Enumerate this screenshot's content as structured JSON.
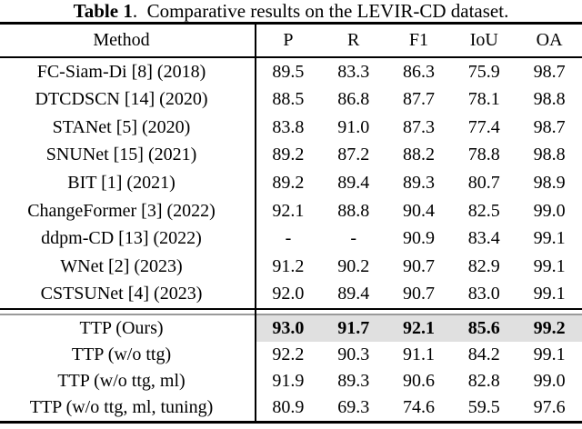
{
  "caption": {
    "tag": "Table 1",
    "rest": ".  Comparative results on the LEVIR-CD dataset."
  },
  "columns": {
    "method": "Method",
    "metrics": [
      "P",
      "R",
      "F1",
      "IoU",
      "OA"
    ]
  },
  "rows": [
    {
      "method": "FC-Siam-Di [8] (2018)",
      "values": [
        "89.5",
        "83.3",
        "86.3",
        "75.9",
        "98.7"
      ]
    },
    {
      "method": "DTCDSCN [14] (2020)",
      "values": [
        "88.5",
        "86.8",
        "87.7",
        "78.1",
        "98.8"
      ]
    },
    {
      "method": "STANet [5] (2020)",
      "values": [
        "83.8",
        "91.0",
        "87.3",
        "77.4",
        "98.7"
      ]
    },
    {
      "method": "SNUNet [15] (2021)",
      "values": [
        "89.2",
        "87.2",
        "88.2",
        "78.8",
        "98.8"
      ]
    },
    {
      "method": "BIT [1] (2021)",
      "values": [
        "89.2",
        "89.4",
        "89.3",
        "80.7",
        "98.9"
      ]
    },
    {
      "method": "ChangeFormer [3] (2022)",
      "values": [
        "92.1",
        "88.8",
        "90.4",
        "82.5",
        "99.0"
      ]
    },
    {
      "method": "ddpm-CD [13] (2022)",
      "values": [
        "-",
        "-",
        "90.9",
        "83.4",
        "99.1"
      ]
    },
    {
      "method": "WNet [2] (2023)",
      "values": [
        "91.2",
        "90.2",
        "90.7",
        "82.9",
        "99.1"
      ]
    },
    {
      "method": "CSTSUNet [4] (2023)",
      "values": [
        "92.0",
        "89.4",
        "90.7",
        "83.0",
        "99.1"
      ]
    }
  ],
  "ttp_rows": [
    {
      "method": "TTP (Ours)",
      "values": [
        "93.0",
        "91.7",
        "92.1",
        "85.6",
        "99.2"
      ],
      "bold": true,
      "highlighted": true
    },
    {
      "method": "TTP (w/o ttg)",
      "values": [
        "92.2",
        "90.3",
        "91.1",
        "84.2",
        "99.1"
      ]
    },
    {
      "method": "TTP (w/o ttg, ml)",
      "values": [
        "91.9",
        "89.3",
        "90.6",
        "82.8",
        "99.0"
      ]
    },
    {
      "method": "TTP (w/o ttg, ml, tuning)",
      "values": [
        "80.9",
        "69.3",
        "74.6",
        "59.5",
        "97.6"
      ]
    }
  ],
  "colors": {
    "highlight": "#e0e0e0",
    "rule": "#000000",
    "double_rule_secondary": "#9a9a9a"
  }
}
